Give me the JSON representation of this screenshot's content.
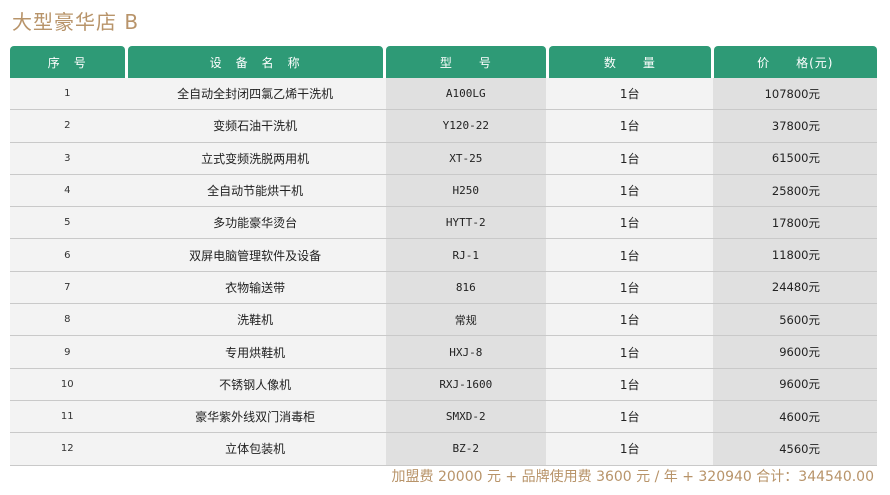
{
  "title": "大型豪华店 B",
  "headers": [
    "序　号",
    "设　备　名　称",
    "型　　号",
    "数　　量",
    "价　　格(元)"
  ],
  "rows": [
    {
      "no": "1",
      "name": "全自动全封闭四氯乙烯干洗机",
      "model": "A100LG",
      "qty": "1台",
      "price": "107800元"
    },
    {
      "no": "2",
      "name": "变频石油干洗机",
      "model": "Y120-22",
      "qty": "1台",
      "price": "37800元"
    },
    {
      "no": "3",
      "name": "立式变频洗脱两用机",
      "model": "XT-25",
      "qty": "1台",
      "price": "61500元"
    },
    {
      "no": "4",
      "name": "全自动节能烘干机",
      "model": "H250",
      "qty": "1台",
      "price": "25800元"
    },
    {
      "no": "5",
      "name": "多功能豪华烫台",
      "model": "HYTT-2",
      "qty": "1台",
      "price": "17800元"
    },
    {
      "no": "6",
      "name": "双屏电脑管理软件及设备",
      "model": "RJ-1",
      "qty": "1台",
      "price": "11800元"
    },
    {
      "no": "7",
      "name": "衣物输送带",
      "model": "816",
      "qty": "1台",
      "price": "24480元"
    },
    {
      "no": "8",
      "name": "洗鞋机",
      "model": "常规",
      "qty": "1台",
      "price": "5600元"
    },
    {
      "no": "9",
      "name": "专用烘鞋机",
      "model": "HXJ-8",
      "qty": "1台",
      "price": "9600元"
    },
    {
      "no": "10",
      "name": "不锈钢人像机",
      "model": "RXJ-1600",
      "qty": "1台",
      "price": "9600元"
    },
    {
      "no": "11",
      "name": "豪华紫外线双门消毒柜",
      "model": "SMXD-2",
      "qty": "1台",
      "price": "4600元"
    },
    {
      "no": "12",
      "name": "立体包装机",
      "model": "BZ-2",
      "qty": "1台",
      "price": "4560元"
    }
  ],
  "footer": "加盟费 20000 元 + 品牌使用费 3600 元 / 年 + 320940 合计：344540.00",
  "colors": {
    "header_green": "#2e9a76",
    "accent_gold": "#b8946a"
  }
}
